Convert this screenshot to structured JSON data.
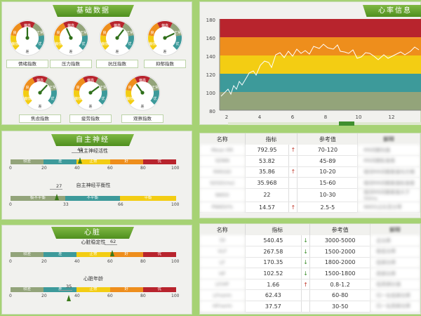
{
  "colors": {
    "poor": "#93a47a",
    "normal": "#3d9a9a",
    "fine": "#f3cd13",
    "good": "#ee8e1c",
    "excellent": "#b8242d"
  },
  "gauge_labels": {
    "high": "偏高",
    "low": "偏低",
    "normal": "正常",
    "good": "良",
    "excellent": "优",
    "poor": "差"
  },
  "basic": {
    "title": "基础数据",
    "gauges": [
      {
        "label": "情绪指数",
        "value": 0.5
      },
      {
        "label": "压力指数",
        "value": 0.41
      },
      {
        "label": "抗压指数",
        "value": 0.64
      },
      {
        "label": "抑郁指数",
        "value": 0.74
      },
      {
        "label": "焦虑指数",
        "value": 0.66
      },
      {
        "label": "疲劳指数",
        "value": 0.7
      },
      {
        "label": "观察指数",
        "value": 0.37
      }
    ]
  },
  "heart_info": {
    "title": "心率信息",
    "y_ticks": [
      "180",
      "160",
      "140",
      "120",
      "100",
      "80"
    ],
    "x_ticks": [
      "2",
      "4",
      "6",
      "8",
      "10",
      "12"
    ]
  },
  "autonomic": {
    "title": "自主神经",
    "activity": {
      "title": "自主神经活性",
      "value": 42,
      "segments": [
        "较差",
        "差",
        "正常",
        "好",
        "优"
      ],
      "ticks": [
        "0",
        "20",
        "40",
        "60",
        "80",
        "100"
      ]
    },
    "balance": {
      "title": "自主神经平衡性",
      "value": 27,
      "min_label": "0",
      "segments": [
        "极不平衡",
        "不平衡",
        "平衡"
      ],
      "ticks": [
        "33",
        "66",
        "100"
      ]
    }
  },
  "heart": {
    "title": "心脏",
    "stability": {
      "title": "心脏稳定性",
      "value": 62,
      "segments": [
        "较差",
        "差",
        "正常",
        "好",
        "优"
      ],
      "ticks": [
        "0",
        "20",
        "40",
        "60",
        "80",
        "100"
      ]
    },
    "age": {
      "title": "心脏年龄",
      "value": 35,
      "segments": [
        "较差",
        "差",
        "正常",
        "好",
        "优"
      ],
      "ticks": [
        "0",
        "20",
        "40",
        "60",
        "80",
        "100"
      ]
    }
  },
  "hrv_table": {
    "headers": [
      "名称",
      "指标",
      "参考值",
      "解释"
    ],
    "rows": [
      {
        "name": "Mean RR",
        "value": "792.95",
        "arrow": "up",
        "ref": "70-120",
        "desc": "RR间期均值"
      },
      {
        "name": "SDNN",
        "value": "53.82",
        "arrow": "",
        "ref": "45-89",
        "desc": "RR间期标准差"
      },
      {
        "name": "RMSSD",
        "value": "35.86",
        "arrow": "up",
        "ref": "10-20",
        "desc": "相邻RR间期差值均方根"
      },
      {
        "name": "SDSD(ms)",
        "value": "35.968",
        "arrow": "",
        "ref": "15-60",
        "desc": "相邻RR间期差值标准差"
      },
      {
        "name": "NN50",
        "value": "22",
        "arrow": "",
        "ref": "10-30",
        "desc": "相邻RR间期差值大于50ms"
      },
      {
        "name": "PNN50%",
        "value": "14.57",
        "arrow": "up",
        "ref": "2.5-5",
        "desc": "NN50占比百分率"
      }
    ]
  },
  "freq_table": {
    "headers": [
      "名称",
      "指标",
      "参考值",
      "解释"
    ],
    "rows": [
      {
        "name": "TP",
        "value": "540.45",
        "arrow": "down",
        "ref": "3000-5000",
        "desc": "总功率"
      },
      {
        "name": "VLF",
        "value": "267.58",
        "arrow": "down",
        "ref": "1500-2000",
        "desc": "极低功率"
      },
      {
        "name": "LF",
        "value": "170.35",
        "arrow": "down",
        "ref": "1800-2000",
        "desc": "低频功率"
      },
      {
        "name": "HF",
        "value": "102.52",
        "arrow": "down",
        "ref": "1500-1800",
        "desc": "高频功率"
      },
      {
        "name": "LF/HF",
        "value": "1.66",
        "arrow": "up",
        "ref": "0.8-1.2",
        "desc": "低高频比值"
      },
      {
        "name": "LFnorm",
        "value": "62.43",
        "arrow": "",
        "ref": "60-80",
        "desc": "归一化低频功率"
      },
      {
        "name": "HFnorm",
        "value": "37.57",
        "arrow": "",
        "ref": "30-50",
        "desc": "归一化高频功率"
      }
    ]
  }
}
